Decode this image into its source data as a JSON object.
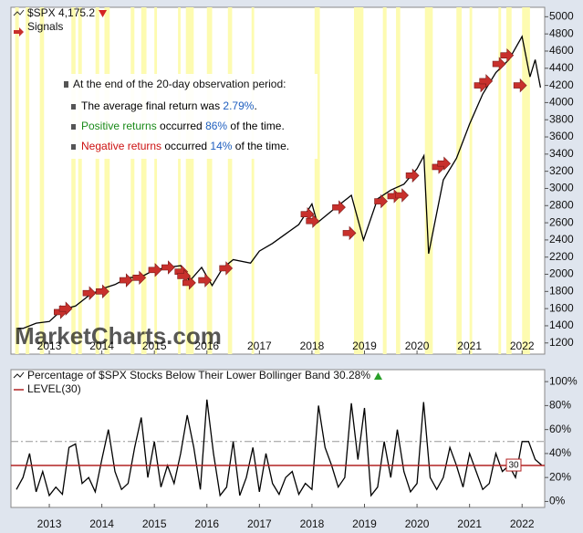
{
  "chart_data": [
    {
      "type": "line",
      "series": [
        {
          "name": "$SPX 4,175.2",
          "color": "#000000",
          "x": [
            2012.4,
            2012.5,
            2012.75,
            2013,
            2013.25,
            2013.5,
            2013.75,
            2014,
            2014.25,
            2014.5,
            2014.75,
            2015,
            2015.25,
            2015.5,
            2015.67,
            2015.9,
            2016.1,
            2016.3,
            2016.5,
            2016.83,
            2017,
            2017.25,
            2017.5,
            2017.75,
            2018,
            2018.1,
            2018.5,
            2018.75,
            2018.98,
            2019.25,
            2019.5,
            2019.75,
            2020,
            2020.13,
            2020.22,
            2020.5,
            2020.75,
            2021,
            2021.25,
            2021.5,
            2021.75,
            2022,
            2022.15,
            2022.25,
            2022.35
          ],
          "values": [
            1370,
            1370,
            1430,
            1450,
            1590,
            1630,
            1750,
            1830,
            1880,
            1960,
            1970,
            2050,
            2080,
            2100,
            1920,
            2080,
            1870,
            2070,
            2170,
            2130,
            2270,
            2360,
            2470,
            2580,
            2820,
            2600,
            2800,
            2920,
            2400,
            2880,
            2980,
            3050,
            3230,
            3380,
            2240,
            3100,
            3350,
            3750,
            4100,
            4350,
            4500,
            4770,
            4300,
            4500,
            4175
          ]
        }
      ],
      "signals": {
        "name": "Signals",
        "color": "#c8302c",
        "x": [
          2013.3,
          2013.4,
          2013.85,
          2014.1,
          2014.55,
          2014.8,
          2015.1,
          2015.35,
          2015.6,
          2015.65,
          2015.75,
          2016.05,
          2016.45,
          2018.0,
          2018.1,
          2018.6,
          2018.8,
          2019.4,
          2019.65,
          2019.8,
          2020.0,
          2020.5,
          2020.6,
          2021.3,
          2021.4,
          2021.65,
          2021.8,
          2022.05
        ],
        "values": [
          1560,
          1600,
          1780,
          1800,
          1930,
          1960,
          2050,
          2080,
          2030,
          1980,
          1900,
          1930,
          2070,
          2700,
          2620,
          2780,
          2480,
          2850,
          2910,
          2920,
          3150,
          3250,
          3290,
          4200,
          4250,
          4450,
          4550,
          4200
        ]
      },
      "highlight_periods": [
        [
          2012.35,
          2012.42
        ],
        [
          2012.55,
          2012.62
        ],
        [
          2012.82,
          2012.9
        ],
        [
          2013.42,
          2013.5
        ],
        [
          2013.55,
          2013.62
        ],
        [
          2013.88,
          2013.95
        ],
        [
          2014.05,
          2014.15
        ],
        [
          2014.55,
          2014.62
        ],
        [
          2014.75,
          2014.85
        ],
        [
          2015.0,
          2015.05
        ],
        [
          2015.45,
          2015.5
        ],
        [
          2015.6,
          2015.75
        ],
        [
          2016.0,
          2016.1
        ],
        [
          2016.4,
          2016.48
        ],
        [
          2016.85,
          2016.9
        ],
        [
          2018.05,
          2018.15
        ],
        [
          2018.8,
          2018.98
        ],
        [
          2019.35,
          2019.42
        ],
        [
          2019.6,
          2019.68
        ],
        [
          2020.15,
          2020.3
        ],
        [
          2020.75,
          2020.85
        ],
        [
          2021.0,
          2021.05
        ],
        [
          2021.55,
          2021.6
        ],
        [
          2021.7,
          2021.8
        ],
        [
          2022.0,
          2022.15
        ]
      ],
      "highlight_color": "#fdfbb0",
      "annotation": {
        "heading": "At the end of the 20-day observation period:",
        "lines": [
          [
            {
              "text": "The average final return was ",
              "color": "#000000"
            },
            {
              "text": "2.79%",
              "color": "#1f5fbf"
            },
            {
              "text": ".",
              "color": "#000000"
            }
          ],
          [
            {
              "text": "Positive returns",
              "color": "#1a8a1a"
            },
            {
              "text": " occurred ",
              "color": "#000000"
            },
            {
              "text": "86%",
              "color": "#1f5fbf"
            },
            {
              "text": " of the time.",
              "color": "#000000"
            }
          ],
          [
            {
              "text": "Negative returns",
              "color": "#cc1111"
            },
            {
              "text": " occurred ",
              "color": "#000000"
            },
            {
              "text": "14%",
              "color": "#1f5fbf"
            },
            {
              "text": " of the time.",
              "color": "#000000"
            }
          ]
        ]
      },
      "watermark": "MarketCharts.com",
      "xlim": [
        2012.27,
        2022.43
      ],
      "xticks": [
        2013,
        2014,
        2015,
        2016,
        2017,
        2018,
        2019,
        2020,
        2021,
        2022
      ],
      "ylim": [
        1070,
        5110
      ],
      "yticks": [
        1200,
        1400,
        1600,
        1800,
        2000,
        2200,
        2400,
        2600,
        2800,
        3000,
        3200,
        3400,
        3600,
        3800,
        4000,
        4200,
        4400,
        4600,
        4800,
        5000
      ]
    },
    {
      "type": "line",
      "series": [
        {
          "name": "Percentage of $SPX Stocks Below Their Lower Bollinger Band 30.28%",
          "color": "#000000",
          "x": [
            2012.375,
            2012.5,
            2012.625,
            2012.75,
            2012.875,
            2013,
            2013.125,
            2013.25,
            2013.375,
            2013.5,
            2013.625,
            2013.75,
            2013.875,
            2014,
            2014.125,
            2014.25,
            2014.375,
            2014.5,
            2014.625,
            2014.75,
            2014.875,
            2015,
            2015.125,
            2015.25,
            2015.375,
            2015.5,
            2015.625,
            2015.75,
            2015.875,
            2016,
            2016.125,
            2016.25,
            2016.375,
            2016.5,
            2016.625,
            2016.75,
            2016.875,
            2017,
            2017.125,
            2017.25,
            2017.375,
            2017.5,
            2017.625,
            2017.75,
            2017.875,
            2018,
            2018.125,
            2018.25,
            2018.375,
            2018.5,
            2018.625,
            2018.75,
            2018.875,
            2019,
            2019.125,
            2019.25,
            2019.375,
            2019.5,
            2019.625,
            2019.75,
            2019.875,
            2020,
            2020.125,
            2020.25,
            2020.375,
            2020.5,
            2020.625,
            2020.75,
            2020.875,
            2021,
            2021.125,
            2021.25,
            2021.375,
            2021.5,
            2021.625,
            2021.75,
            2021.875,
            2022,
            2022.125,
            2022.25,
            2022.375
          ],
          "values": [
            10,
            20,
            40,
            8,
            25,
            5,
            12,
            6,
            45,
            48,
            15,
            20,
            8,
            35,
            60,
            25,
            10,
            15,
            45,
            70,
            20,
            50,
            12,
            30,
            15,
            40,
            72,
            45,
            10,
            85,
            40,
            5,
            12,
            50,
            5,
            20,
            45,
            8,
            40,
            15,
            6,
            20,
            25,
            6,
            15,
            10,
            80,
            45,
            30,
            12,
            20,
            82,
            35,
            78,
            5,
            12,
            50,
            20,
            60,
            25,
            8,
            15,
            83,
            20,
            10,
            20,
            45,
            30,
            12,
            40,
            25,
            10,
            15,
            40,
            25,
            30,
            20,
            50,
            50,
            35,
            30.28
          ]
        }
      ],
      "level": {
        "name": "LEVEL(30)",
        "value": 30,
        "color": "#b22222"
      },
      "reference_line": 50,
      "xlim": [
        2012.27,
        2022.43
      ],
      "xticks": [
        2013,
        2014,
        2015,
        2016,
        2017,
        2018,
        2019,
        2020,
        2021,
        2022
      ],
      "ylim": [
        -5,
        110
      ],
      "yticks": [
        {
          "value": 0,
          "label": "0%"
        },
        {
          "value": 20,
          "label": "20%"
        },
        {
          "value": 40,
          "label": "40%"
        },
        {
          "value": 60,
          "label": "60%"
        },
        {
          "value": 80,
          "label": "80%"
        },
        {
          "value": 100,
          "label": "100%"
        }
      ]
    }
  ]
}
